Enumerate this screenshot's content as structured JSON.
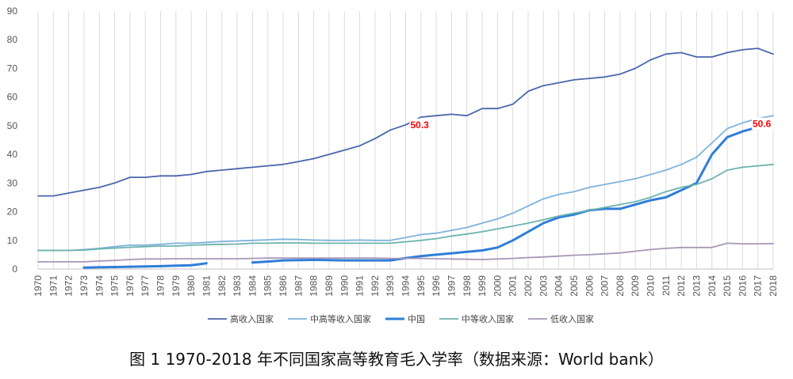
{
  "chart_data": {
    "type": "line",
    "title": "",
    "xlabel": "",
    "ylabel": "",
    "ylim": [
      0,
      90
    ],
    "yticks": [
      0,
      10,
      20,
      30,
      40,
      50,
      60,
      70,
      80,
      90
    ],
    "grid": "vertical",
    "legend_position": "bottom",
    "categories": [
      "1970",
      "1971",
      "1972",
      "1973",
      "1974",
      "1975",
      "1976",
      "1977",
      "1978",
      "1979",
      "1980",
      "1981",
      "1982",
      "1983",
      "1984",
      "1985",
      "1986",
      "1987",
      "1988",
      "1989",
      "1990",
      "1991",
      "1992",
      "1993",
      "1994",
      "1995",
      "1996",
      "1997",
      "1998",
      "1999",
      "2000",
      "2001",
      "2002",
      "2003",
      "2004",
      "2005",
      "2006",
      "2007",
      "2008",
      "2009",
      "2010",
      "2011",
      "2012",
      "2013",
      "2014",
      "2015",
      "2016",
      "2017",
      "2018"
    ],
    "series": [
      {
        "name": "高收入国家",
        "color": "#4a66ad",
        "values": [
          25.5,
          25.5,
          26.5,
          27.5,
          28.5,
          30,
          32,
          32,
          32.5,
          32.5,
          33,
          34,
          34.5,
          35,
          35.5,
          36,
          36.5,
          37.5,
          38.5,
          40,
          41.5,
          43,
          45.5,
          48.5,
          50.3,
          53,
          53.5,
          54,
          53.5,
          56,
          56,
          57.5,
          62,
          64,
          65,
          66,
          66.5,
          67,
          68,
          70,
          73,
          75,
          75.5,
          74,
          74,
          75.5,
          76.5,
          77,
          75
        ]
      },
      {
        "name": "中高等收入国家",
        "color": "#7db3dd",
        "values": [
          6.5,
          6.5,
          6.5,
          6.8,
          7.2,
          7.8,
          8.3,
          8.3,
          8.6,
          9,
          9,
          9.3,
          9.6,
          9.8,
          10,
          10.2,
          10.4,
          10.3,
          10.1,
          10,
          10,
          10.1,
          10,
          10,
          11,
          12,
          12.5,
          13.5,
          14.5,
          16,
          17.5,
          19.5,
          22,
          24.5,
          26,
          27,
          28.5,
          29.5,
          30.5,
          31.5,
          33,
          34.5,
          36.5,
          39,
          44,
          49,
          51,
          52.5,
          53.5
        ]
      },
      {
        "name": "中国",
        "color": "#2f7ed8",
        "values": [
          null,
          null,
          null,
          0.5,
          0.6,
          0.7,
          0.8,
          0.9,
          1,
          1.2,
          1.3,
          2,
          null,
          null,
          2.3,
          2.6,
          3,
          3.1,
          3.2,
          3.1,
          3,
          3,
          3,
          3,
          3.8,
          4.5,
          5,
          5.5,
          6,
          6.5,
          7.5,
          10,
          13,
          16,
          18,
          19,
          20.5,
          21,
          21,
          22.5,
          24,
          25,
          27.5,
          30,
          40,
          46,
          48,
          49.5,
          50.6
        ]
      },
      {
        "name": "中等收入国家",
        "color": "#6db3ae",
        "values": [
          6.5,
          6.5,
          6.5,
          6.6,
          7,
          7.3,
          7.6,
          7.8,
          8,
          8,
          8.3,
          8.5,
          8.6,
          8.7,
          9,
          9,
          9.1,
          9.1,
          9,
          9,
          9,
          9,
          9,
          9,
          9.5,
          10,
          10.6,
          11.5,
          12.2,
          13,
          14,
          15,
          16,
          17.2,
          18.5,
          19.5,
          20.5,
          21.5,
          22.5,
          23.5,
          25,
          27,
          28.5,
          29.5,
          31.5,
          34.5,
          35.5,
          36,
          36.5
        ]
      },
      {
        "name": "低收入国家",
        "color": "#a898b8",
        "values": [
          2.5,
          2.5,
          2.5,
          2.5,
          2.8,
          3,
          3.3,
          3.5,
          3.5,
          3.6,
          3.6,
          3.6,
          3.6,
          3.6,
          3.7,
          3.8,
          3.8,
          3.8,
          3.8,
          3.8,
          3.8,
          3.8,
          3.8,
          3.7,
          3.7,
          3.7,
          3.6,
          3.5,
          3.4,
          3.3,
          3.5,
          3.7,
          4,
          4.2,
          4.5,
          4.8,
          5,
          5.3,
          5.6,
          6.2,
          6.8,
          7.2,
          7.5,
          7.5,
          7.5,
          9,
          8.8,
          8.8,
          8.9
        ]
      }
    ],
    "annotations": [
      {
        "text": "50.3",
        "category": "1994",
        "value": 50.3,
        "color": "#ff0000"
      },
      {
        "text": "50.6",
        "category": "2018",
        "value": 50.6,
        "color": "#ff0000"
      }
    ],
    "caption": "图 1 1970-2018 年不同国家高等教育毛入学率（数据来源：World bank）"
  }
}
